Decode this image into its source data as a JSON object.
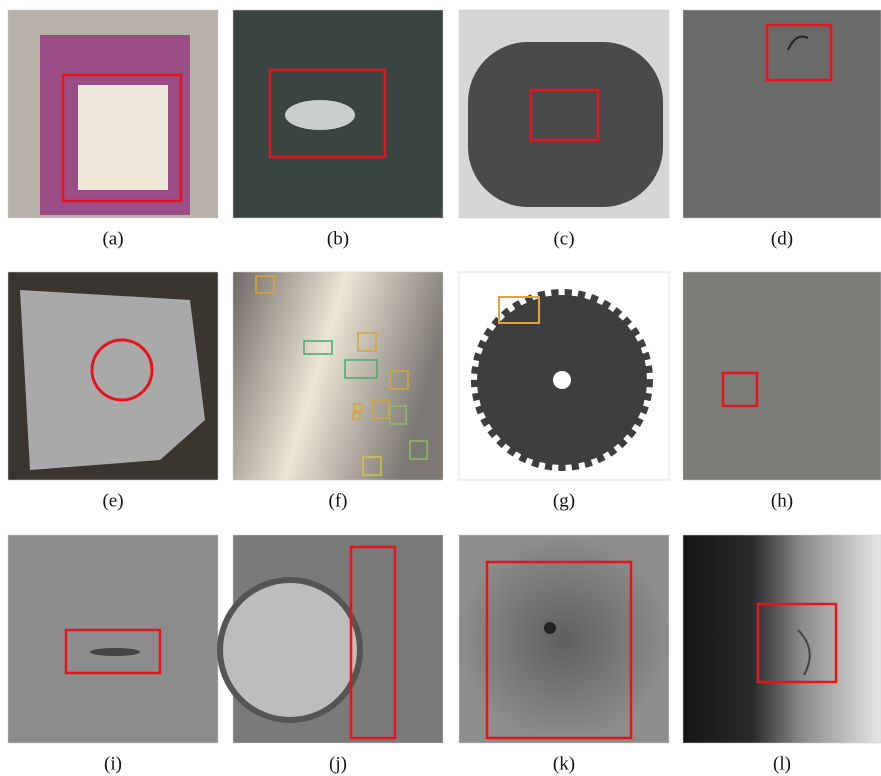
{
  "panels": [
    {
      "label": "(a)"
    },
    {
      "label": "(b)"
    },
    {
      "label": "(c)"
    },
    {
      "label": "(d)"
    },
    {
      "label": "(e)"
    },
    {
      "label": "(f)"
    },
    {
      "label": "(g)"
    },
    {
      "label": "(h)"
    },
    {
      "label": "(i)"
    },
    {
      "label": "(j)"
    },
    {
      "label": "(k)"
    },
    {
      "label": "(l)"
    }
  ]
}
